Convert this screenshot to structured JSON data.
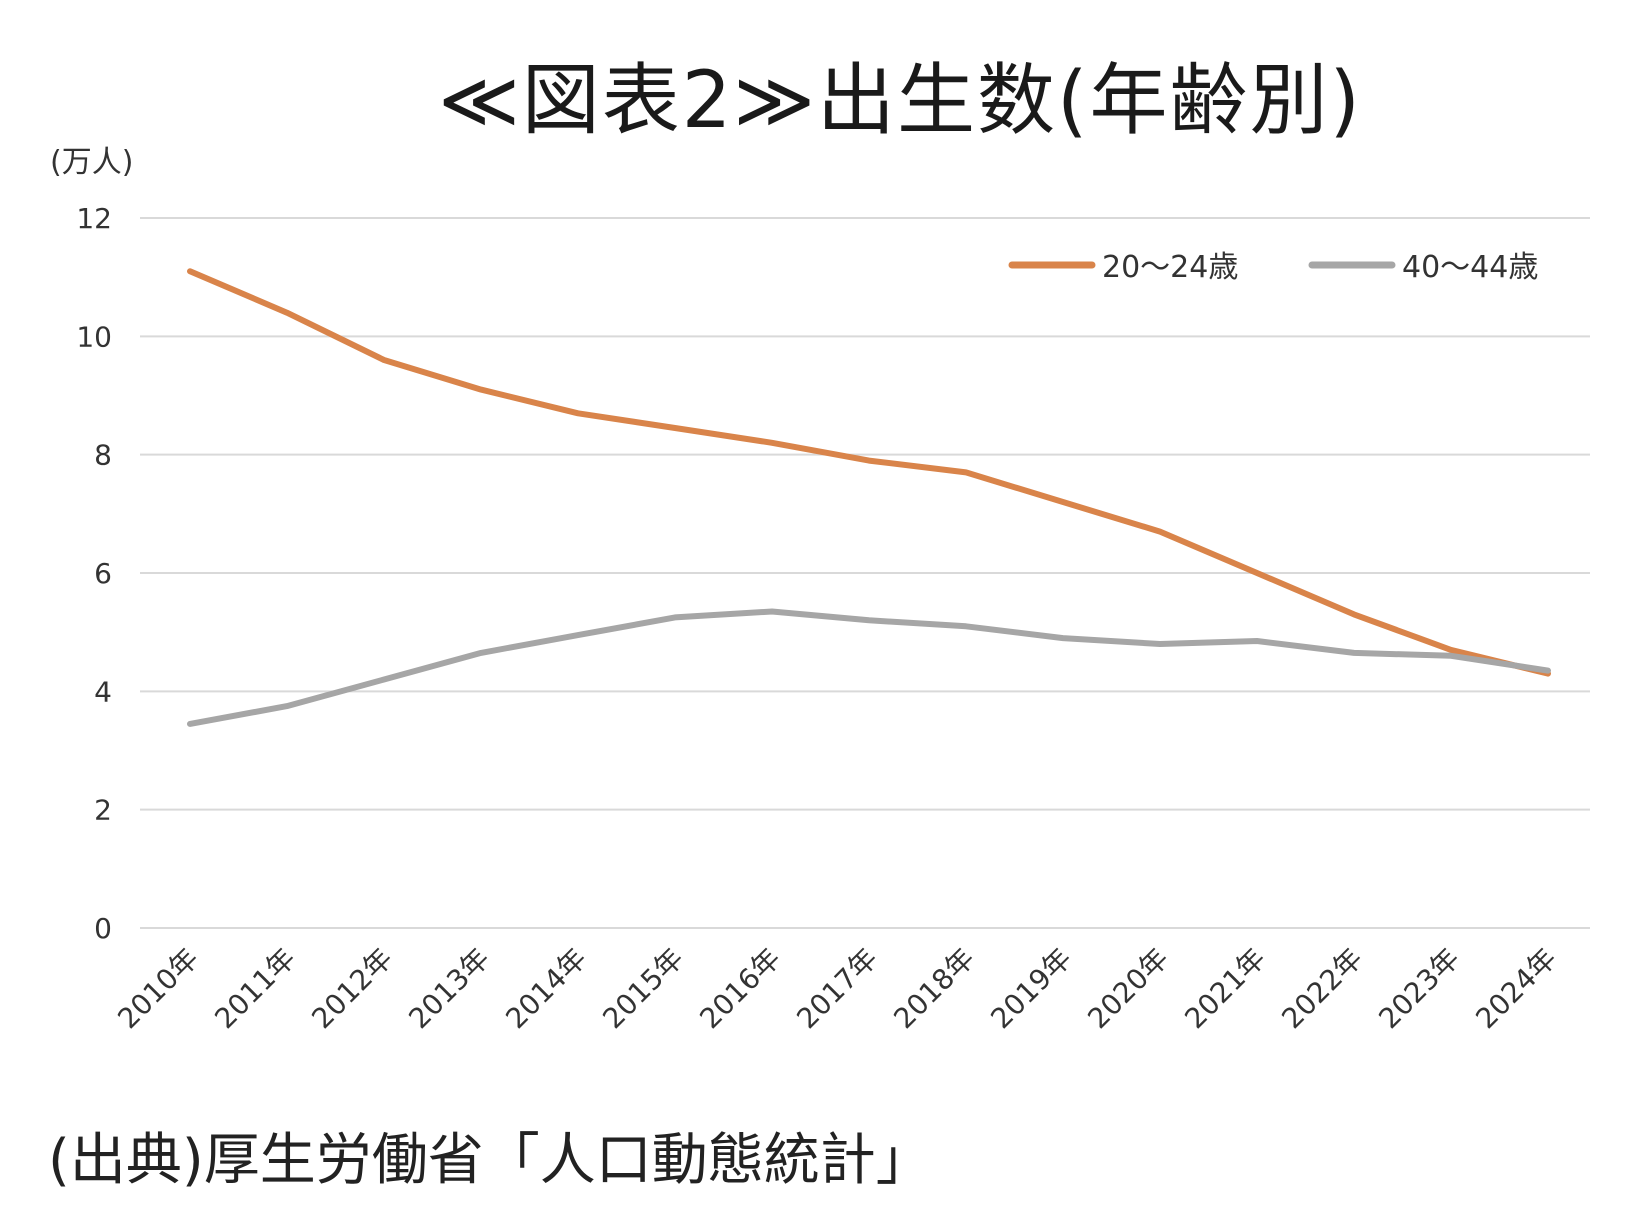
{
  "title": "≪図表2≫出生数(年齢別)",
  "source": "(出典)厚生労働省「人口動態統計」",
  "chart_data": {
    "type": "line",
    "title": "≪図表2≫出生数(年齢別)",
    "ylabel": "(万人)",
    "xlabel": "",
    "ylim": [
      0,
      12
    ],
    "yticks": [
      "0",
      "2",
      "4",
      "6",
      "8",
      "10",
      "12"
    ],
    "grid": true,
    "legend_position": "top-right",
    "categories": [
      "2010年",
      "2011年",
      "2012年",
      "2013年",
      "2014年",
      "2015年",
      "2016年",
      "2017年",
      "2018年",
      "2019年",
      "2020年",
      "2021年",
      "2022年",
      "2023年",
      "2024年"
    ],
    "series": [
      {
        "name": "20～24歳",
        "color": "#d9844a",
        "values": [
          11.1,
          10.4,
          9.6,
          9.1,
          8.7,
          8.45,
          8.2,
          7.9,
          7.7,
          7.2,
          6.7,
          6.0,
          5.3,
          4.7,
          4.3
        ]
      },
      {
        "name": "40～44歳",
        "color": "#a6a6a6",
        "values": [
          3.45,
          3.75,
          4.2,
          4.65,
          4.95,
          5.25,
          5.35,
          5.2,
          5.1,
          4.9,
          4.8,
          4.85,
          4.65,
          4.6,
          4.35
        ]
      }
    ]
  }
}
